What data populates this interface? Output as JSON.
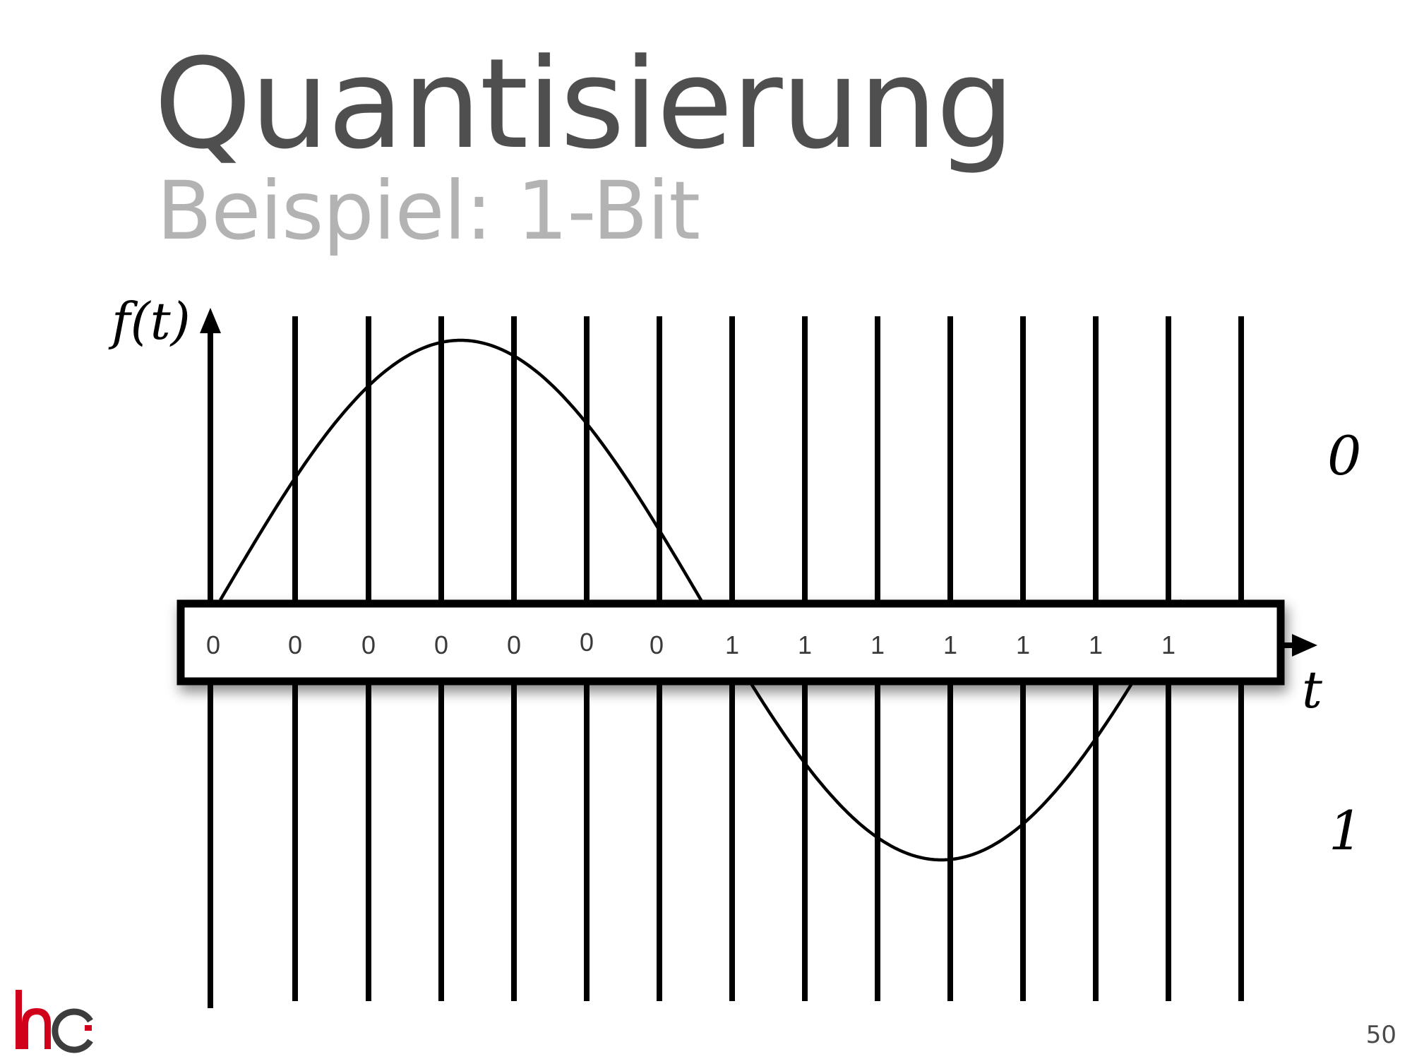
{
  "slide": {
    "title": "Quantisierung",
    "subtitle": "Beispiel: 1-Bit",
    "page_number": "50",
    "logo_text": "hc"
  },
  "diagram": {
    "y_axis_label": "f(t)",
    "x_axis_label": "t",
    "level_upper_label": "0",
    "level_lower_label": "1",
    "bits": [
      "0",
      "0",
      "0",
      "0",
      "0",
      "0",
      "0",
      "1",
      "1",
      "1",
      "1",
      "1",
      "1",
      "1"
    ],
    "colors": {
      "stroke": "#000000",
      "logo_red": "#d0021b",
      "logo_dark": "#3d3d3d",
      "title": "#4f4f4f",
      "subtitle": "#b3b3b3"
    }
  }
}
